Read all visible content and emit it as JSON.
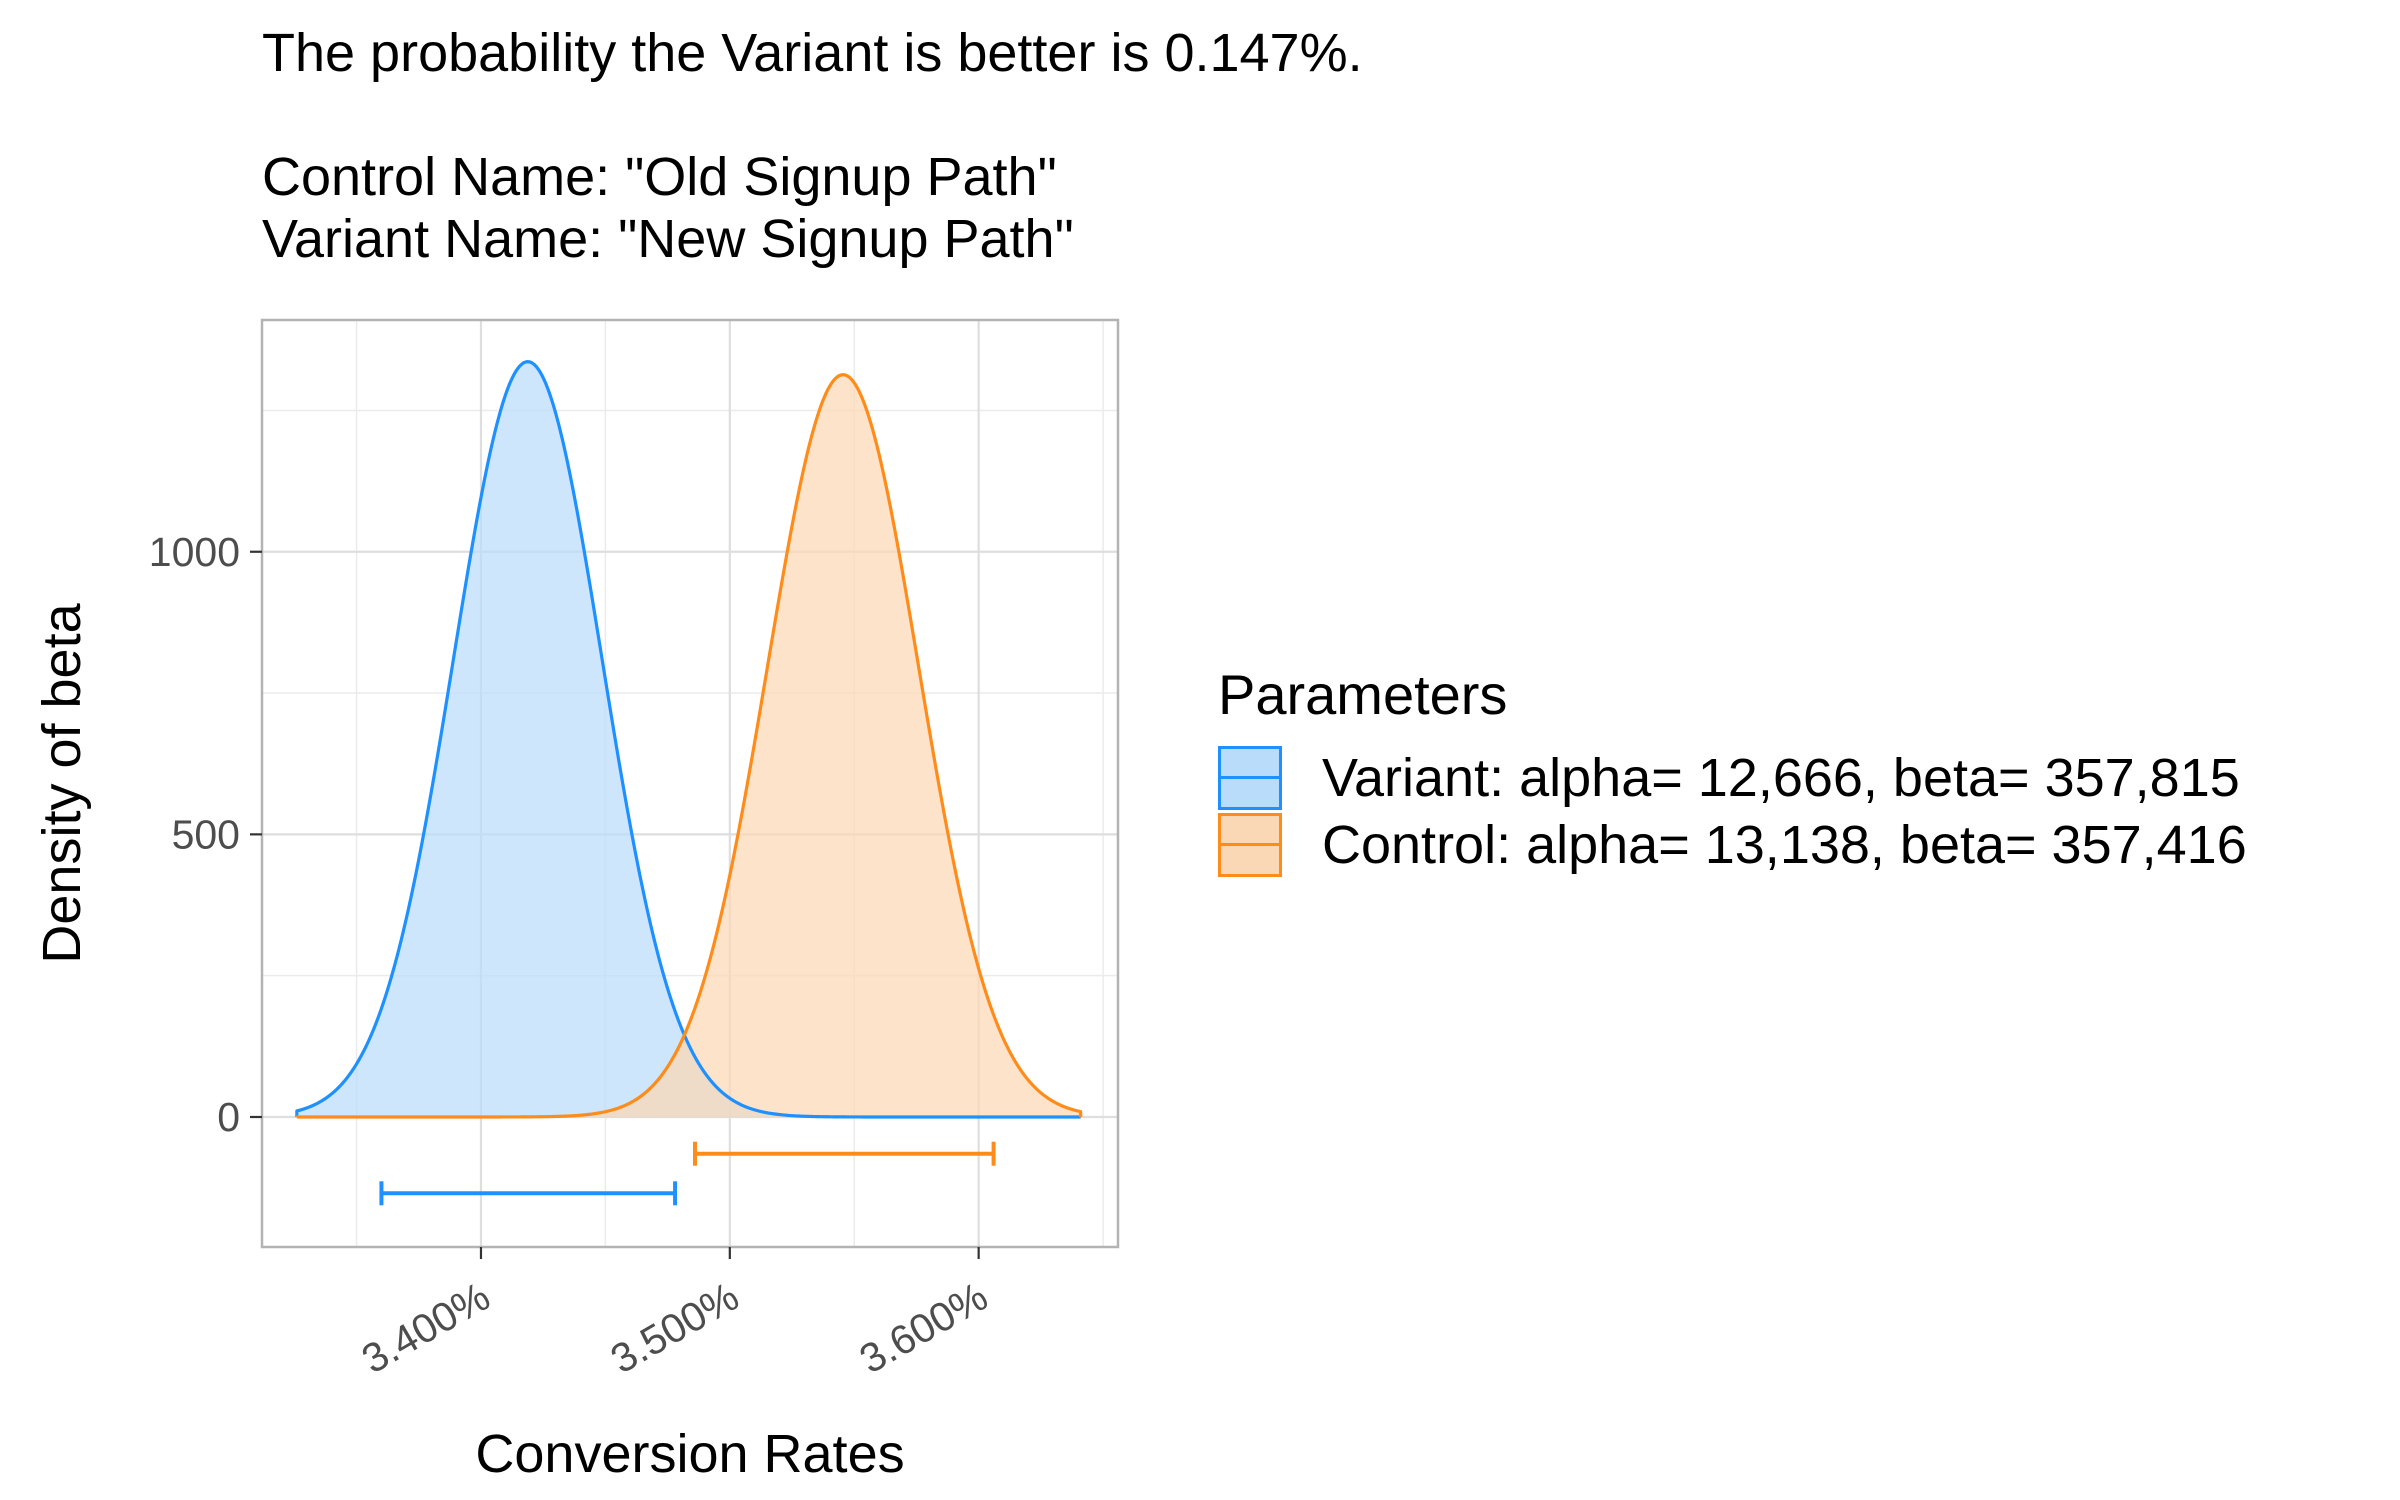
{
  "title_lines": [
    "The probability the Variant is better is 0.147%.",
    "",
    "Control Name: \"Old Signup Path\"",
    "Variant Name: \"New Signup Path\""
  ],
  "legend": {
    "title": "Parameters",
    "items": [
      {
        "label": "Variant: alpha= 12,666, beta= 357,815",
        "line_color": "#1E90FF",
        "fill_color": "#BADCFB"
      },
      {
        "label": "Control: alpha= 13,138, beta= 357,416",
        "line_color": "#FF8C1A",
        "fill_color": "#FBD8B5"
      }
    ]
  },
  "chart_data": {
    "type": "area",
    "title": "The probability the Variant is better is 0.147%.",
    "subtitle": "Control Name: \"Old Signup Path\"\nVariant Name: \"New Signup Path\"",
    "xlabel": "Conversion Rates",
    "ylabel": "Density of beta",
    "xlim": [
      0.03312,
      0.03656
    ],
    "ylim": [
      -230,
      1410
    ],
    "x_ticks": [
      0.034,
      0.035,
      0.036
    ],
    "x_tick_labels": [
      "3.400%",
      "3.500%",
      "3.600%"
    ],
    "y_ticks": [
      0,
      500,
      1000
    ],
    "y_tick_labels": [
      "0",
      "500",
      "1000"
    ],
    "grid": true,
    "legend_position": "right",
    "colors": {
      "variant": "#1E90FF",
      "control": "#FF8C1A",
      "variant_fill": "#BADCFB",
      "control_fill": "#FBD8B5"
    },
    "x_range": [
      0.03326,
      0.03641
    ],
    "series": [
      {
        "name": "Variant: alpha= 12,666, beta= 357,815",
        "alpha": 12666,
        "beta": 357815,
        "peak_x": 0.03419,
        "peak_density": 1340,
        "ci_95": [
          0.0336,
          0.03478
        ],
        "ci_y": -135
      },
      {
        "name": "Control: alpha= 13,138, beta= 357,416",
        "alpha": 13138,
        "beta": 357416,
        "peak_x": 0.03546,
        "peak_density": 1310,
        "ci_95": [
          0.03486,
          0.03606
        ],
        "ci_y": -65
      }
    ]
  }
}
